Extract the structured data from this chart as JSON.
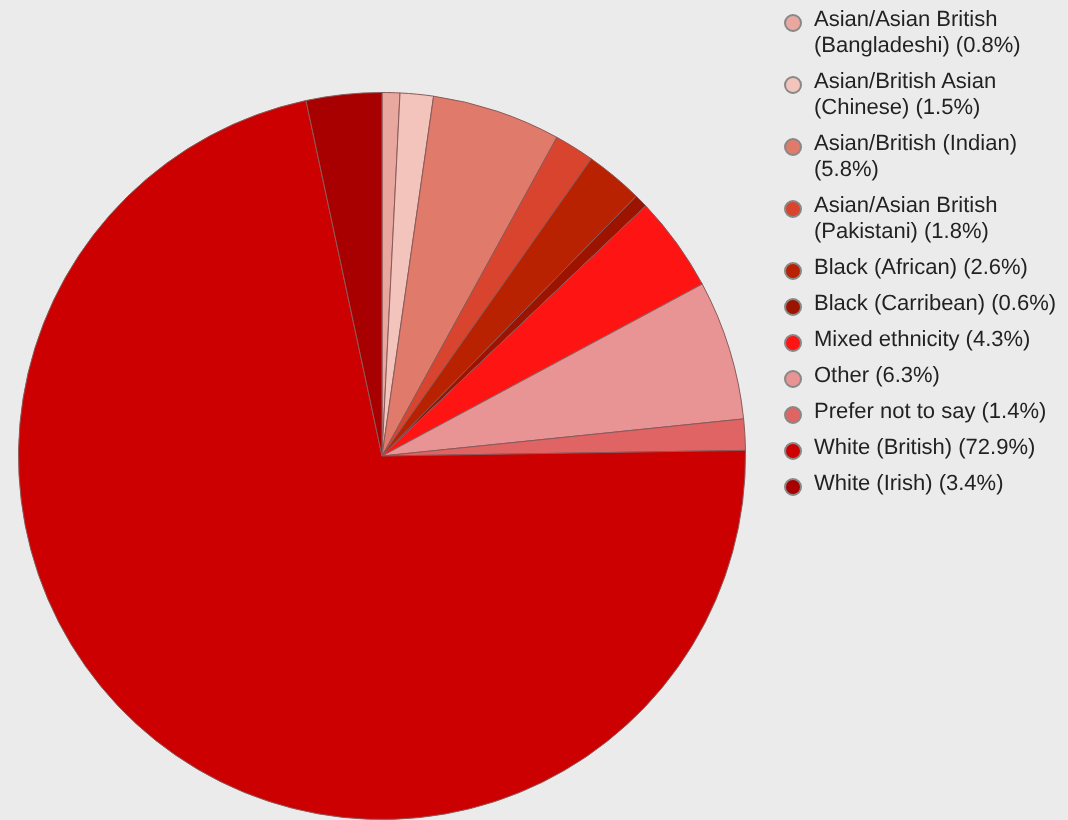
{
  "chart_data": {
    "type": "pie",
    "categories": [
      "Asian/Asian British (Bangladeshi) (0.8%)",
      "Asian/British Asian (Chinese) (1.5%)",
      "Asian/British (Indian) (5.8%)",
      "Asian/Asian British (Pakistani) (1.8%)",
      "Black (African) (2.6%)",
      "Black (Carribean) (0.6%)",
      "Mixed ethnicity (4.3%)",
      "Other (6.3%)",
      "Prefer not to say (1.4%)",
      "White (British) (72.9%)",
      "White (Irish) (3.4%)"
    ],
    "values": [
      0.8,
      1.5,
      5.8,
      1.8,
      2.6,
      0.6,
      4.3,
      6.3,
      1.4,
      72.9,
      3.4
    ],
    "colors": [
      "#e8a8a0",
      "#f2c4bc",
      "#e07a6a",
      "#d8442e",
      "#b82200",
      "#9c1400",
      "#ff1414",
      "#e89494",
      "#e06464",
      "#cc0000",
      "#a80000"
    ],
    "legend": "right"
  }
}
